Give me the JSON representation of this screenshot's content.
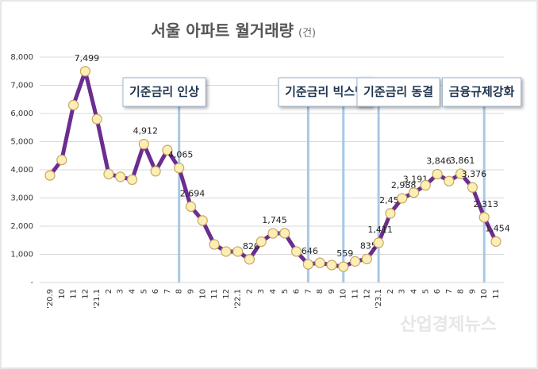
{
  "chart_data": {
    "type": "line",
    "title": "서울 아파트 월거래량",
    "unit": "(건)",
    "watermark": "산업경제뉴스",
    "categories": [
      "'20.9",
      "10",
      "11",
      "12",
      "'21.1",
      "2",
      "3",
      "4",
      "5",
      "6",
      "7",
      "8",
      "9",
      "10",
      "11",
      "12",
      "'22.1",
      "2",
      "3",
      "4",
      "5",
      "6",
      "7",
      "8",
      "9",
      "10",
      "11",
      "12",
      "'23.1",
      "2",
      "3",
      "4",
      "5",
      "6",
      "7",
      "8",
      "9",
      "10",
      "11"
    ],
    "values": [
      3800,
      4350,
      6300,
      7499,
      5800,
      3850,
      3750,
      3650,
      4912,
      3950,
      4700,
      4065,
      2694,
      2200,
      1350,
      1100,
      1100,
      820,
      1450,
      1745,
      1750,
      1100,
      646,
      700,
      620,
      559,
      750,
      835,
      1411,
      2454,
      2988,
      3191,
      3450,
      3846,
      3600,
      3861,
      3376,
      2313,
      1454
    ],
    "value_labels": [
      null,
      null,
      null,
      "7,499",
      null,
      null,
      null,
      null,
      "4,912",
      null,
      null,
      "4,065",
      "2,694",
      null,
      null,
      null,
      null,
      "820",
      null,
      "1,745",
      null,
      null,
      "646",
      null,
      null,
      "559",
      null,
      "835",
      "1,411",
      "2,454",
      "2,988",
      "3,191",
      null,
      "3,846",
      null,
      "3,861",
      "3,376",
      "2,313",
      "1,454"
    ],
    "color": "#6b2d8f",
    "marker_color": "#fbefb4",
    "ylim": [
      0,
      8000
    ],
    "yticks": [
      {
        "value": 0,
        "label": "-"
      },
      {
        "value": 1000,
        "label": "1,000"
      },
      {
        "value": 2000,
        "label": "2,000"
      },
      {
        "value": 3000,
        "label": "3,000"
      },
      {
        "value": 4000,
        "label": "4,000"
      },
      {
        "value": 5000,
        "label": "5,000"
      },
      {
        "value": 6000,
        "label": "6,000"
      },
      {
        "value": 7000,
        "label": "7,000"
      },
      {
        "value": 8000,
        "label": "8,000"
      }
    ],
    "grid": true,
    "annotations": [
      "기준금리 인상",
      "기준금리 빅스텝",
      "기준금리 동결",
      "금융규제강화"
    ]
  }
}
